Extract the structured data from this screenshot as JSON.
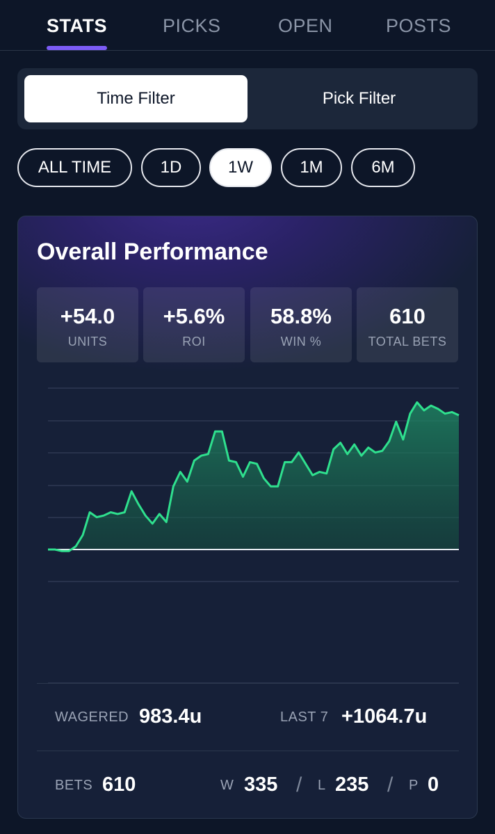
{
  "tabs": [
    {
      "label": "STATS",
      "active": true
    },
    {
      "label": "PICKS",
      "active": false
    },
    {
      "label": "OPEN",
      "active": false
    },
    {
      "label": "POSTS",
      "active": false
    }
  ],
  "filter_toggle": {
    "time_label": "Time Filter",
    "pick_label": "Pick Filter",
    "selected": "Time Filter"
  },
  "time_ranges": [
    {
      "label": "ALL TIME",
      "active": false
    },
    {
      "label": "1D",
      "active": false
    },
    {
      "label": "1W",
      "active": true
    },
    {
      "label": "1M",
      "active": false
    },
    {
      "label": "6M",
      "active": false
    }
  ],
  "performance": {
    "title": "Overall Performance",
    "stats": [
      {
        "value": "+54.0",
        "label": "UNITS"
      },
      {
        "value": "+5.6%",
        "label": "ROI"
      },
      {
        "value": "58.8%",
        "label": "WIN %"
      },
      {
        "value": "610",
        "label": "TOTAL BETS"
      }
    ]
  },
  "chart_data": {
    "type": "area",
    "color": "#2fe08e",
    "baseline": 0,
    "ylim": [
      -10,
      50
    ],
    "grid": true,
    "x": [
      0,
      1,
      2,
      3,
      4,
      5,
      6,
      7,
      8,
      9,
      10,
      11,
      12,
      13,
      14,
      15,
      16,
      17,
      18,
      19,
      20,
      21,
      22,
      23,
      24,
      25,
      26,
      27,
      28,
      29,
      30,
      31,
      32,
      33,
      34,
      35,
      36,
      37,
      38,
      39,
      40,
      41,
      42,
      43,
      44,
      45,
      46,
      47,
      48,
      49,
      50,
      51,
      52,
      53,
      54,
      55,
      56,
      57,
      58,
      59
    ],
    "values": [
      0,
      0,
      -0.5,
      -0.5,
      1,
      4.5,
      11.5,
      10,
      10.5,
      11.5,
      11,
      11.5,
      18,
      14,
      10.5,
      8,
      11,
      8.5,
      19.5,
      24,
      21,
      27.5,
      29,
      29.5,
      36.5,
      36.5,
      27.5,
      27,
      22.5,
      27,
      26.5,
      22,
      19.5,
      19.5,
      27,
      27,
      30,
      26.5,
      23,
      24,
      23.5,
      31,
      33,
      29.5,
      32.5,
      29,
      31.5,
      30,
      30.5,
      33.5,
      39.5,
      34,
      42,
      45.5,
      43,
      44.5,
      43.5,
      42,
      42.5,
      41.5
    ]
  },
  "summary": {
    "wagered_label": "WAGERED",
    "wagered_value": "983.4u",
    "last7_label": "LAST 7",
    "last7_value": "+1064.7u",
    "bets_label": "BETS",
    "bets_value": "610",
    "w_label": "W",
    "w_value": "335",
    "l_label": "L",
    "l_value": "235",
    "p_label": "P",
    "p_value": "0",
    "separator": "/"
  }
}
